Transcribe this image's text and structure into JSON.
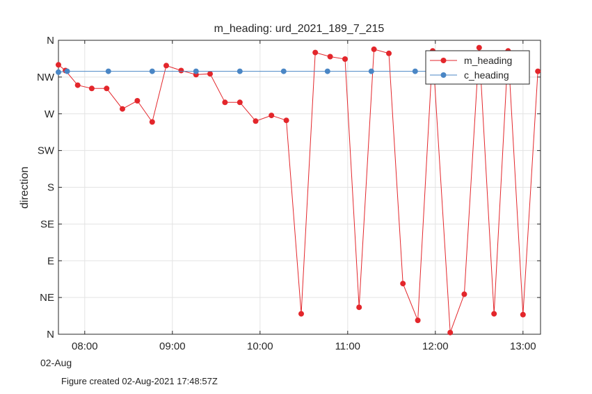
{
  "footer": "Figure created 02-Aug-2021 17:48:57Z",
  "chart_data": {
    "type": "line",
    "title": "m_heading: urd_2021_189_7_215",
    "xlabel": "",
    "ylabel": "direction",
    "date_label": "02-Aug",
    "x_unit": "hours of day 02-Aug-2021",
    "xlim": [
      7.7,
      13.2
    ],
    "ylim": [
      0,
      360
    ],
    "x_ticks": [
      {
        "value": 8,
        "label": "08:00"
      },
      {
        "value": 9,
        "label": "09:00"
      },
      {
        "value": 10,
        "label": "10:00"
      },
      {
        "value": 11,
        "label": "11:00"
      },
      {
        "value": 12,
        "label": "12:00"
      },
      {
        "value": 13,
        "label": "13:00"
      }
    ],
    "y_ticks": [
      {
        "value": 0,
        "label": "N"
      },
      {
        "value": 45,
        "label": "NE"
      },
      {
        "value": 90,
        "label": "E"
      },
      {
        "value": 135,
        "label": "SE"
      },
      {
        "value": 180,
        "label": "S"
      },
      {
        "value": 225,
        "label": "SW"
      },
      {
        "value": 270,
        "label": "W"
      },
      {
        "value": 315,
        "label": "NW"
      },
      {
        "value": 360,
        "label": "N"
      }
    ],
    "grid": true,
    "legend_position": "top-right",
    "series": [
      {
        "name": "m_heading",
        "color": "#e3262b",
        "x": [
          7.7,
          7.78,
          7.92,
          8.08,
          8.25,
          8.43,
          8.6,
          8.77,
          8.93,
          9.1,
          9.27,
          9.43,
          9.6,
          9.77,
          9.95,
          10.13,
          10.3,
          10.47,
          10.63,
          10.8,
          10.97,
          11.13,
          11.3,
          11.47,
          11.63,
          11.8,
          11.97,
          12.17,
          12.33,
          12.5,
          12.67,
          12.83,
          13.0,
          13.17
        ],
        "values": [
          330,
          323,
          305,
          301,
          301,
          276,
          286,
          260,
          329,
          323,
          318,
          319,
          284,
          284,
          261,
          268,
          262,
          25,
          345,
          340,
          337,
          33,
          349,
          344,
          62,
          17,
          347,
          2,
          49,
          351,
          25,
          347,
          24,
          322
        ]
      },
      {
        "name": "c_heading",
        "color": "#4a86c5",
        "x": [
          7.7,
          7.8,
          8.27,
          8.77,
          9.27,
          9.77,
          10.27,
          10.77,
          11.27,
          11.77,
          12.27,
          12.77
        ],
        "values": [
          321,
          322,
          322,
          322,
          322,
          322,
          322,
          322,
          322,
          322,
          322,
          322
        ]
      }
    ]
  }
}
